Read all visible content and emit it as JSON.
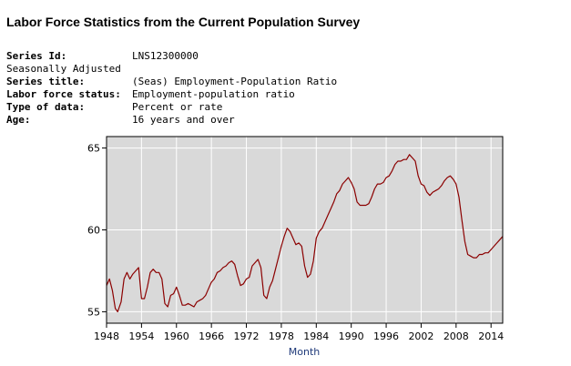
{
  "page_title": "Labor Force Statistics from the Current Population Survey",
  "metadata": {
    "series_id_label": "Series Id:",
    "series_id": "LNS12300000",
    "adjustment": "Seasonally Adjusted",
    "series_title_label": "Series title:",
    "series_title": "(Seas) Employment-Population Ratio",
    "labor_force_status_label": "Labor force status:",
    "labor_force_status": "Employment-population ratio",
    "type_of_data_label": "Type of data:",
    "type_of_data": "Percent or rate",
    "age_label": "Age:",
    "age": "16 years and over"
  },
  "colors": {
    "line": "#8b0000",
    "plot_bg": "#d9d9d9",
    "grid": "#ffffff",
    "xlabel": "#1f3a7a"
  },
  "chart_data": {
    "type": "line",
    "title": "",
    "xlabel": "Month",
    "ylabel": "",
    "xlim": [
      1948,
      2016
    ],
    "ylim": [
      54.3,
      65.7
    ],
    "x_ticks": [
      1948,
      1954,
      1960,
      1966,
      1972,
      1978,
      1984,
      1990,
      1996,
      2002,
      2008,
      2014
    ],
    "x_tick_labels": [
      "1948",
      "1954",
      "1960",
      "1966",
      "1972",
      "1978",
      "1984",
      "1990",
      "1996",
      "2002",
      "2008",
      "2014"
    ],
    "y_ticks": [
      55,
      60,
      65
    ],
    "y_tick_labels": [
      "55",
      "60",
      "65"
    ],
    "grid": true,
    "series": [
      {
        "name": "Employment-Population Ratio",
        "x": [
          1948.0,
          1948.5,
          1949.0,
          1949.5,
          1949.9,
          1950.5,
          1951.0,
          1951.5,
          1952.0,
          1952.5,
          1953.0,
          1953.5,
          1954.0,
          1954.5,
          1955.0,
          1955.5,
          1956.0,
          1956.5,
          1957.0,
          1957.5,
          1958.0,
          1958.5,
          1959.0,
          1959.5,
          1960.0,
          1960.5,
          1961.0,
          1961.5,
          1962.0,
          1962.5,
          1963.0,
          1963.5,
          1964.0,
          1964.5,
          1965.0,
          1965.5,
          1966.0,
          1966.5,
          1967.0,
          1967.5,
          1968.0,
          1968.5,
          1969.0,
          1969.5,
          1970.0,
          1970.5,
          1971.0,
          1971.5,
          1972.0,
          1972.5,
          1973.0,
          1973.5,
          1974.0,
          1974.5,
          1975.0,
          1975.5,
          1976.0,
          1976.5,
          1977.0,
          1977.5,
          1978.0,
          1978.5,
          1979.0,
          1979.5,
          1980.0,
          1980.5,
          1981.0,
          1981.5,
          1982.0,
          1982.5,
          1983.0,
          1983.5,
          1984.0,
          1984.5,
          1985.0,
          1985.5,
          1986.0,
          1986.5,
          1987.0,
          1987.5,
          1988.0,
          1988.5,
          1989.0,
          1989.5,
          1990.0,
          1990.5,
          1991.0,
          1991.5,
          1992.0,
          1992.5,
          1993.0,
          1993.5,
          1994.0,
          1994.5,
          1995.0,
          1995.5,
          1996.0,
          1996.5,
          1997.0,
          1997.5,
          1998.0,
          1998.5,
          1999.0,
          1999.5,
          2000.0,
          2000.5,
          2001.0,
          2001.5,
          2002.0,
          2002.5,
          2003.0,
          2003.5,
          2004.0,
          2004.5,
          2005.0,
          2005.5,
          2006.0,
          2006.5,
          2007.0,
          2007.5,
          2008.0,
          2008.5,
          2009.0,
          2009.5,
          2010.0,
          2010.5,
          2011.0,
          2011.5,
          2012.0,
          2012.5,
          2013.0,
          2013.5,
          2014.0,
          2014.5,
          2015.0,
          2015.5,
          2016.0
        ],
        "values": [
          56.6,
          57.0,
          56.3,
          55.2,
          55.0,
          55.6,
          57.0,
          57.4,
          57.0,
          57.3,
          57.5,
          57.7,
          55.8,
          55.8,
          56.5,
          57.4,
          57.6,
          57.4,
          57.4,
          57.0,
          55.5,
          55.3,
          56.0,
          56.1,
          56.5,
          56.0,
          55.4,
          55.4,
          55.5,
          55.4,
          55.3,
          55.6,
          55.7,
          55.8,
          56.0,
          56.4,
          56.8,
          57.0,
          57.4,
          57.5,
          57.7,
          57.8,
          58.0,
          58.1,
          57.9,
          57.2,
          56.6,
          56.7,
          57.0,
          57.1,
          57.8,
          58.0,
          58.2,
          57.7,
          56.0,
          55.8,
          56.5,
          56.9,
          57.6,
          58.3,
          59.0,
          59.6,
          60.1,
          59.9,
          59.5,
          59.1,
          59.2,
          59.0,
          57.8,
          57.1,
          57.3,
          58.1,
          59.5,
          59.9,
          60.1,
          60.5,
          60.9,
          61.3,
          61.7,
          62.2,
          62.4,
          62.8,
          63.0,
          63.2,
          62.9,
          62.5,
          61.7,
          61.5,
          61.5,
          61.5,
          61.6,
          62.0,
          62.5,
          62.8,
          62.8,
          62.9,
          63.2,
          63.3,
          63.6,
          64.0,
          64.2,
          64.2,
          64.3,
          64.3,
          64.6,
          64.4,
          64.2,
          63.3,
          62.8,
          62.7,
          62.3,
          62.1,
          62.3,
          62.4,
          62.5,
          62.7,
          63.0,
          63.2,
          63.3,
          63.1,
          62.8,
          62.0,
          60.6,
          59.3,
          58.5,
          58.4,
          58.3,
          58.3,
          58.5,
          58.5,
          58.6,
          58.6,
          58.8,
          59.0,
          59.2,
          59.4,
          59.6
        ]
      }
    ]
  }
}
